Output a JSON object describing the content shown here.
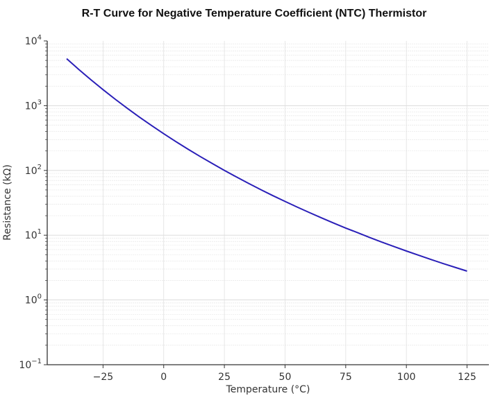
{
  "chart_data": {
    "type": "line",
    "title": "R-T Curve for Negative Temperature Coefficient (NTC) Thermistor",
    "xlabel": "Temperature (°C)",
    "ylabel": "Resistance (kΩ)",
    "xlim": [
      -48,
      134
    ],
    "ylim": [
      0.1,
      10000
    ],
    "yscale": "log",
    "grid": true,
    "color": "#2a1fb8",
    "x_ticks": [
      -25,
      0,
      25,
      50,
      75,
      100,
      125
    ],
    "x_tick_labels": [
      "−25",
      "0",
      "25",
      "50",
      "75",
      "100",
      "125"
    ],
    "y_ticks": [
      0.1,
      1,
      10,
      100,
      1000,
      10000
    ],
    "y_tick_labels": [
      {
        "base": "10",
        "exp": "−1"
      },
      {
        "base": "10",
        "exp": "0"
      },
      {
        "base": "10",
        "exp": "1"
      },
      {
        "base": "10",
        "exp": "2"
      },
      {
        "base": "10",
        "exp": "3"
      },
      {
        "base": "10",
        "exp": "4"
      }
    ],
    "series": [
      {
        "x": [
          -40,
          -35,
          -30,
          -25,
          -20,
          -15,
          -10,
          -5,
          0,
          5,
          10,
          15,
          20,
          25,
          30,
          35,
          40,
          45,
          50,
          55,
          60,
          65,
          70,
          75,
          80,
          85,
          90,
          95,
          100,
          105,
          110,
          115,
          120,
          125
        ],
        "y": [
          5320,
          3630,
          2513,
          1767,
          1260,
          911,
          666,
          493,
          369,
          279,
          213,
          164,
          128,
          100,
          79.1,
          63.0,
          50.5,
          40.8,
          33.2,
          27.2,
          22.4,
          18.5,
          15.4,
          12.9,
          10.9,
          9.18,
          7.8,
          6.65,
          5.7,
          4.9,
          4.23,
          3.67,
          3.19,
          2.79
        ]
      }
    ]
  }
}
